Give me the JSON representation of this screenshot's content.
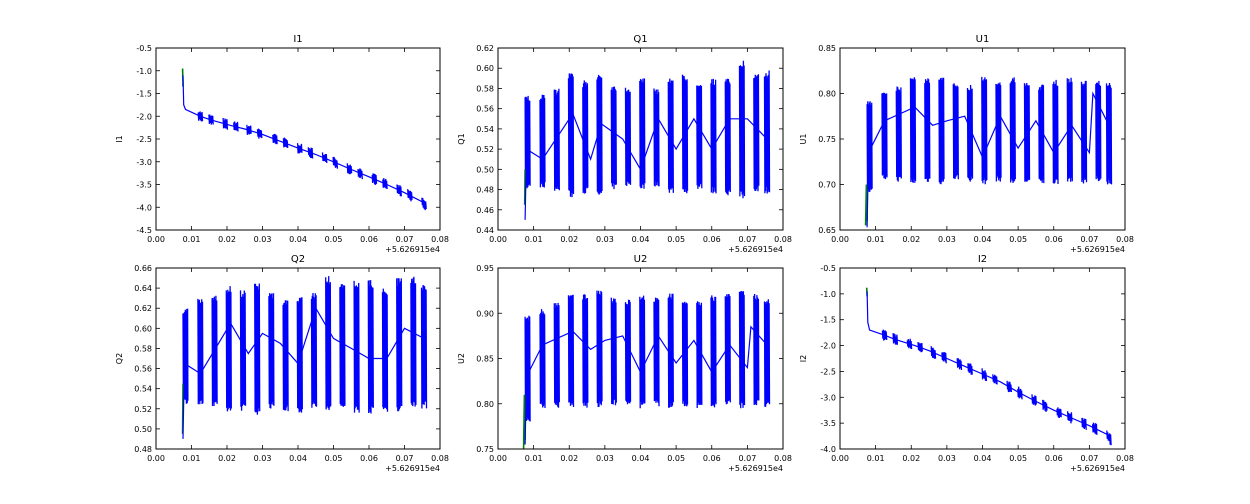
{
  "chart_data": [
    {
      "type": "line",
      "title": "I1",
      "ylabel": "I1",
      "xlabel": "",
      "x_offset_label": "+5.626915e4",
      "xlim": [
        0.0,
        0.08
      ],
      "ylim": [
        -4.5,
        -0.5
      ],
      "xticks": [
        "0.00",
        "0.01",
        "0.02",
        "0.03",
        "0.04",
        "0.05",
        "0.06",
        "0.07",
        "0.08"
      ],
      "yticks": [
        "-4.5",
        "-4.0",
        "-3.5",
        "-3.0",
        "-2.5",
        "-2.0",
        "-1.5",
        "-1.0",
        "-0.5"
      ],
      "pattern": "trend",
      "series": [
        {
          "color": "#008000",
          "points": [
            [
              0.0075,
              -0.95
            ],
            [
              0.0076,
              -1.35
            ]
          ]
        },
        {
          "color": "#0000ff",
          "points": [
            [
              0.0076,
              -1.1
            ],
            [
              0.0078,
              -1.75
            ],
            [
              0.0083,
              -1.85
            ],
            [
              0.0125,
              -2.0
            ],
            [
              0.0155,
              -2.08
            ],
            [
              0.021,
              -2.2
            ],
            [
              0.025,
              -2.28
            ],
            [
              0.03,
              -2.4
            ],
            [
              0.035,
              -2.55
            ],
            [
              0.04,
              -2.7
            ],
            [
              0.045,
              -2.84
            ],
            [
              0.05,
              -3.0
            ],
            [
              0.055,
              -3.17
            ],
            [
              0.06,
              -3.33
            ],
            [
              0.065,
              -3.5
            ],
            [
              0.07,
              -3.68
            ],
            [
              0.075,
              -3.88
            ],
            [
              0.0758,
              -3.98
            ]
          ]
        }
      ],
      "groups": [
        0.0125,
        0.0155,
        0.0195,
        0.0225,
        0.0262,
        0.0292,
        0.0335,
        0.0365,
        0.0405,
        0.0435,
        0.0475,
        0.0505,
        0.0545,
        0.0575,
        0.0615,
        0.0645,
        0.0685,
        0.0715,
        0.0755
      ],
      "group_spread": 0.12
    },
    {
      "type": "line",
      "title": "Q1",
      "ylabel": "Q1",
      "xlabel": "",
      "x_offset_label": "+5.626915e4",
      "xlim": [
        0.0,
        0.08
      ],
      "ylim": [
        0.44,
        0.62
      ],
      "xticks": [
        "0.00",
        "0.01",
        "0.02",
        "0.03",
        "0.04",
        "0.05",
        "0.06",
        "0.07",
        "0.08"
      ],
      "yticks": [
        "0.44",
        "0.46",
        "0.48",
        "0.50",
        "0.52",
        "0.54",
        "0.56",
        "0.58",
        "0.60",
        "0.62"
      ],
      "pattern": "osc",
      "series": [
        {
          "color": "#008000",
          "points": [
            [
              0.0075,
              0.465
            ],
            [
              0.0076,
              0.5
            ]
          ]
        },
        {
          "color": "#0000ff",
          "points": [
            [
              0.0076,
              0.45
            ],
            [
              0.008,
              0.52
            ],
            [
              0.0125,
              0.51
            ],
            [
              0.021,
              0.555
            ],
            [
              0.026,
              0.51
            ],
            [
              0.029,
              0.545
            ],
            [
              0.035,
              0.53
            ],
            [
              0.04,
              0.5
            ],
            [
              0.045,
              0.55
            ],
            [
              0.05,
              0.52
            ],
            [
              0.055,
              0.55
            ],
            [
              0.06,
              0.52
            ],
            [
              0.065,
              0.55
            ],
            [
              0.07,
              0.55
            ],
            [
              0.0755,
              0.53
            ]
          ]
        }
      ],
      "bursts": [
        {
          "x": 0.0083,
          "lo": 0.48,
          "hi": 0.573
        },
        {
          "x": 0.0125,
          "lo": 0.482,
          "hi": 0.574
        },
        {
          "x": 0.0165,
          "lo": 0.478,
          "hi": 0.58
        },
        {
          "x": 0.0205,
          "lo": 0.472,
          "hi": 0.596
        },
        {
          "x": 0.0245,
          "lo": 0.476,
          "hi": 0.588
        },
        {
          "x": 0.0285,
          "lo": 0.472,
          "hi": 0.596
        },
        {
          "x": 0.0325,
          "lo": 0.48,
          "hi": 0.584
        },
        {
          "x": 0.0365,
          "lo": 0.483,
          "hi": 0.582
        },
        {
          "x": 0.0405,
          "lo": 0.48,
          "hi": 0.592
        },
        {
          "x": 0.0445,
          "lo": 0.483,
          "hi": 0.58
        },
        {
          "x": 0.0485,
          "lo": 0.476,
          "hi": 0.592
        },
        {
          "x": 0.0525,
          "lo": 0.476,
          "hi": 0.594
        },
        {
          "x": 0.0565,
          "lo": 0.48,
          "hi": 0.588
        },
        {
          "x": 0.0605,
          "lo": 0.476,
          "hi": 0.59
        },
        {
          "x": 0.0645,
          "lo": 0.474,
          "hi": 0.59
        },
        {
          "x": 0.0685,
          "lo": 0.47,
          "hi": 0.608
        },
        {
          "x": 0.0725,
          "lo": 0.478,
          "hi": 0.594
        },
        {
          "x": 0.0755,
          "lo": 0.476,
          "hi": 0.598
        }
      ]
    },
    {
      "type": "line",
      "title": "U1",
      "ylabel": "U1",
      "xlabel": "",
      "x_offset_label": "+5.626915e4",
      "xlim": [
        0.0,
        0.08
      ],
      "ylim": [
        0.65,
        0.85
      ],
      "xticks": [
        "0.00",
        "0.01",
        "0.02",
        "0.03",
        "0.04",
        "0.05",
        "0.06",
        "0.07",
        "0.08"
      ],
      "yticks": [
        "0.65",
        "0.70",
        "0.75",
        "0.80",
        "0.85"
      ],
      "pattern": "osc",
      "series": [
        {
          "color": "#008000",
          "points": [
            [
              0.0072,
              0.655
            ],
            [
              0.0074,
              0.7
            ],
            [
              0.0076,
              0.66
            ]
          ]
        },
        {
          "color": "#0000ff",
          "points": [
            [
              0.0076,
              0.653
            ],
            [
              0.008,
              0.735
            ],
            [
              0.0125,
              0.77
            ],
            [
              0.021,
              0.785
            ],
            [
              0.026,
              0.765
            ],
            [
              0.03,
              0.77
            ],
            [
              0.035,
              0.775
            ],
            [
              0.04,
              0.73
            ],
            [
              0.045,
              0.775
            ],
            [
              0.05,
              0.74
            ],
            [
              0.055,
              0.77
            ],
            [
              0.06,
              0.735
            ],
            [
              0.065,
              0.765
            ],
            [
              0.07,
              0.735
            ],
            [
              0.071,
              0.8
            ],
            [
              0.0755,
              0.765
            ]
          ]
        }
      ],
      "bursts": [
        {
          "x": 0.0083,
          "lo": 0.69,
          "hi": 0.793
        },
        {
          "x": 0.0125,
          "lo": 0.705,
          "hi": 0.805
        },
        {
          "x": 0.0165,
          "lo": 0.703,
          "hi": 0.808
        },
        {
          "x": 0.0205,
          "lo": 0.7,
          "hi": 0.82
        },
        {
          "x": 0.0245,
          "lo": 0.702,
          "hi": 0.818
        },
        {
          "x": 0.0285,
          "lo": 0.7,
          "hi": 0.818
        },
        {
          "x": 0.0325,
          "lo": 0.705,
          "hi": 0.812
        },
        {
          "x": 0.0365,
          "lo": 0.703,
          "hi": 0.81
        },
        {
          "x": 0.0405,
          "lo": 0.7,
          "hi": 0.82
        },
        {
          "x": 0.0445,
          "lo": 0.703,
          "hi": 0.815
        },
        {
          "x": 0.0485,
          "lo": 0.7,
          "hi": 0.818
        },
        {
          "x": 0.0525,
          "lo": 0.701,
          "hi": 0.812
        },
        {
          "x": 0.0565,
          "lo": 0.7,
          "hi": 0.81
        },
        {
          "x": 0.0605,
          "lo": 0.7,
          "hi": 0.815
        },
        {
          "x": 0.0645,
          "lo": 0.703,
          "hi": 0.818
        },
        {
          "x": 0.0685,
          "lo": 0.7,
          "hi": 0.815
        },
        {
          "x": 0.0725,
          "lo": 0.703,
          "hi": 0.815
        },
        {
          "x": 0.0755,
          "lo": 0.7,
          "hi": 0.812
        }
      ]
    },
    {
      "type": "line",
      "title": "Q2",
      "ylabel": "Q2",
      "xlabel": "",
      "x_offset_label": "+5.626915e4",
      "xlim": [
        0.0,
        0.08
      ],
      "ylim": [
        0.48,
        0.66
      ],
      "xticks": [
        "0.00",
        "0.01",
        "0.02",
        "0.03",
        "0.04",
        "0.05",
        "0.06",
        "0.07",
        "0.08"
      ],
      "yticks": [
        "0.48",
        "0.50",
        "0.52",
        "0.54",
        "0.56",
        "0.58",
        "0.60",
        "0.62",
        "0.64",
        "0.66"
      ],
      "pattern": "osc",
      "series": [
        {
          "color": "#008000",
          "points": [
            [
              0.0075,
              0.495
            ],
            [
              0.0076,
              0.545
            ]
          ]
        },
        {
          "color": "#0000ff",
          "points": [
            [
              0.0076,
              0.49
            ],
            [
              0.008,
              0.565
            ],
            [
              0.0125,
              0.555
            ],
            [
              0.021,
              0.605
            ],
            [
              0.026,
              0.575
            ],
            [
              0.03,
              0.595
            ],
            [
              0.035,
              0.585
            ],
            [
              0.04,
              0.565
            ],
            [
              0.045,
              0.62
            ],
            [
              0.05,
              0.59
            ],
            [
              0.055,
              0.58
            ],
            [
              0.06,
              0.57
            ],
            [
              0.065,
              0.57
            ],
            [
              0.07,
              0.6
            ],
            [
              0.0755,
              0.59
            ]
          ]
        }
      ],
      "bursts": [
        {
          "x": 0.0083,
          "lo": 0.525,
          "hi": 0.62
        },
        {
          "x": 0.0125,
          "lo": 0.523,
          "hi": 0.63
        },
        {
          "x": 0.0165,
          "lo": 0.52,
          "hi": 0.634
        },
        {
          "x": 0.0205,
          "lo": 0.516,
          "hi": 0.642
        },
        {
          "x": 0.0245,
          "lo": 0.518,
          "hi": 0.638
        },
        {
          "x": 0.0285,
          "lo": 0.514,
          "hi": 0.645
        },
        {
          "x": 0.0325,
          "lo": 0.52,
          "hi": 0.636
        },
        {
          "x": 0.0365,
          "lo": 0.517,
          "hi": 0.628
        },
        {
          "x": 0.0405,
          "lo": 0.516,
          "hi": 0.632
        },
        {
          "x": 0.0445,
          "lo": 0.52,
          "hi": 0.636
        },
        {
          "x": 0.0485,
          "lo": 0.516,
          "hi": 0.652
        },
        {
          "x": 0.0525,
          "lo": 0.519,
          "hi": 0.644
        },
        {
          "x": 0.0565,
          "lo": 0.516,
          "hi": 0.648
        },
        {
          "x": 0.0605,
          "lo": 0.515,
          "hi": 0.648
        },
        {
          "x": 0.0645,
          "lo": 0.517,
          "hi": 0.64
        },
        {
          "x": 0.0685,
          "lo": 0.516,
          "hi": 0.65
        },
        {
          "x": 0.0725,
          "lo": 0.522,
          "hi": 0.652
        },
        {
          "x": 0.0755,
          "lo": 0.52,
          "hi": 0.645
        }
      ]
    },
    {
      "type": "line",
      "title": "U2",
      "ylabel": "U2",
      "xlabel": "",
      "x_offset_label": "+5.626915e4",
      "xlim": [
        0.0,
        0.08
      ],
      "ylim": [
        0.75,
        0.95
      ],
      "xticks": [
        "0.00",
        "0.01",
        "0.02",
        "0.03",
        "0.04",
        "0.05",
        "0.06",
        "0.07",
        "0.08"
      ],
      "yticks": [
        "0.75",
        "0.80",
        "0.85",
        "0.90",
        "0.95"
      ],
      "pattern": "osc",
      "series": [
        {
          "color": "#008000",
          "points": [
            [
              0.0072,
              0.75
            ],
            [
              0.0074,
              0.81
            ],
            [
              0.0076,
              0.76
            ]
          ]
        },
        {
          "color": "#0000ff",
          "points": [
            [
              0.0076,
              0.755
            ],
            [
              0.008,
              0.83
            ],
            [
              0.0125,
              0.865
            ],
            [
              0.021,
              0.88
            ],
            [
              0.026,
              0.86
            ],
            [
              0.03,
              0.87
            ],
            [
              0.035,
              0.875
            ],
            [
              0.04,
              0.835
            ],
            [
              0.045,
              0.875
            ],
            [
              0.05,
              0.845
            ],
            [
              0.055,
              0.87
            ],
            [
              0.06,
              0.835
            ],
            [
              0.065,
              0.865
            ],
            [
              0.07,
              0.84
            ],
            [
              0.071,
              0.885
            ],
            [
              0.0755,
              0.865
            ]
          ]
        }
      ],
      "bursts": [
        {
          "x": 0.0083,
          "lo": 0.78,
          "hi": 0.898
        },
        {
          "x": 0.0125,
          "lo": 0.795,
          "hi": 0.905
        },
        {
          "x": 0.0165,
          "lo": 0.795,
          "hi": 0.912
        },
        {
          "x": 0.0205,
          "lo": 0.795,
          "hi": 0.925
        },
        {
          "x": 0.0245,
          "lo": 0.795,
          "hi": 0.922
        },
        {
          "x": 0.0285,
          "lo": 0.795,
          "hi": 0.925
        },
        {
          "x": 0.0325,
          "lo": 0.798,
          "hi": 0.918
        },
        {
          "x": 0.0365,
          "lo": 0.797,
          "hi": 0.915
        },
        {
          "x": 0.0405,
          "lo": 0.795,
          "hi": 0.922
        },
        {
          "x": 0.0445,
          "lo": 0.797,
          "hi": 0.918
        },
        {
          "x": 0.0485,
          "lo": 0.795,
          "hi": 0.922
        },
        {
          "x": 0.0525,
          "lo": 0.796,
          "hi": 0.918
        },
        {
          "x": 0.0565,
          "lo": 0.795,
          "hi": 0.915
        },
        {
          "x": 0.0605,
          "lo": 0.795,
          "hi": 0.92
        },
        {
          "x": 0.0645,
          "lo": 0.797,
          "hi": 0.922
        },
        {
          "x": 0.0685,
          "lo": 0.795,
          "hi": 0.928
        },
        {
          "x": 0.0725,
          "lo": 0.797,
          "hi": 0.922
        },
        {
          "x": 0.0755,
          "lo": 0.795,
          "hi": 0.916
        }
      ]
    },
    {
      "type": "line",
      "title": "I2",
      "ylabel": "I2",
      "xlabel": "",
      "x_offset_label": "+5.626915e4",
      "xlim": [
        0.0,
        0.08
      ],
      "ylim": [
        -4.0,
        -0.5
      ],
      "xticks": [
        "0.00",
        "0.01",
        "0.02",
        "0.03",
        "0.04",
        "0.05",
        "0.06",
        "0.07",
        "0.08"
      ],
      "yticks": [
        "-4.0",
        "-3.5",
        "-3.0",
        "-2.5",
        "-2.0",
        "-1.5",
        "-1.0",
        "-0.5"
      ],
      "pattern": "trend",
      "series": [
        {
          "color": "#008000",
          "points": [
            [
              0.0075,
              -0.88
            ],
            [
              0.0076,
              -1.05
            ]
          ]
        },
        {
          "color": "#0000ff",
          "points": [
            [
              0.0076,
              -0.95
            ],
            [
              0.0078,
              -1.55
            ],
            [
              0.0083,
              -1.7
            ],
            [
              0.0125,
              -1.8
            ],
            [
              0.0155,
              -1.88
            ],
            [
              0.021,
              -2.0
            ],
            [
              0.025,
              -2.1
            ],
            [
              0.03,
              -2.25
            ],
            [
              0.035,
              -2.4
            ],
            [
              0.04,
              -2.55
            ],
            [
              0.045,
              -2.7
            ],
            [
              0.05,
              -2.9
            ],
            [
              0.055,
              -3.08
            ],
            [
              0.06,
              -3.25
            ],
            [
              0.065,
              -3.4
            ],
            [
              0.07,
              -3.55
            ],
            [
              0.075,
              -3.72
            ],
            [
              0.0758,
              -3.82
            ]
          ]
        }
      ],
      "groups": [
        0.0125,
        0.0155,
        0.0195,
        0.0225,
        0.0262,
        0.0292,
        0.0335,
        0.0365,
        0.0405,
        0.0435,
        0.0475,
        0.0505,
        0.0545,
        0.0575,
        0.0615,
        0.0645,
        0.0685,
        0.0715,
        0.0755
      ],
      "group_spread": 0.11
    }
  ]
}
